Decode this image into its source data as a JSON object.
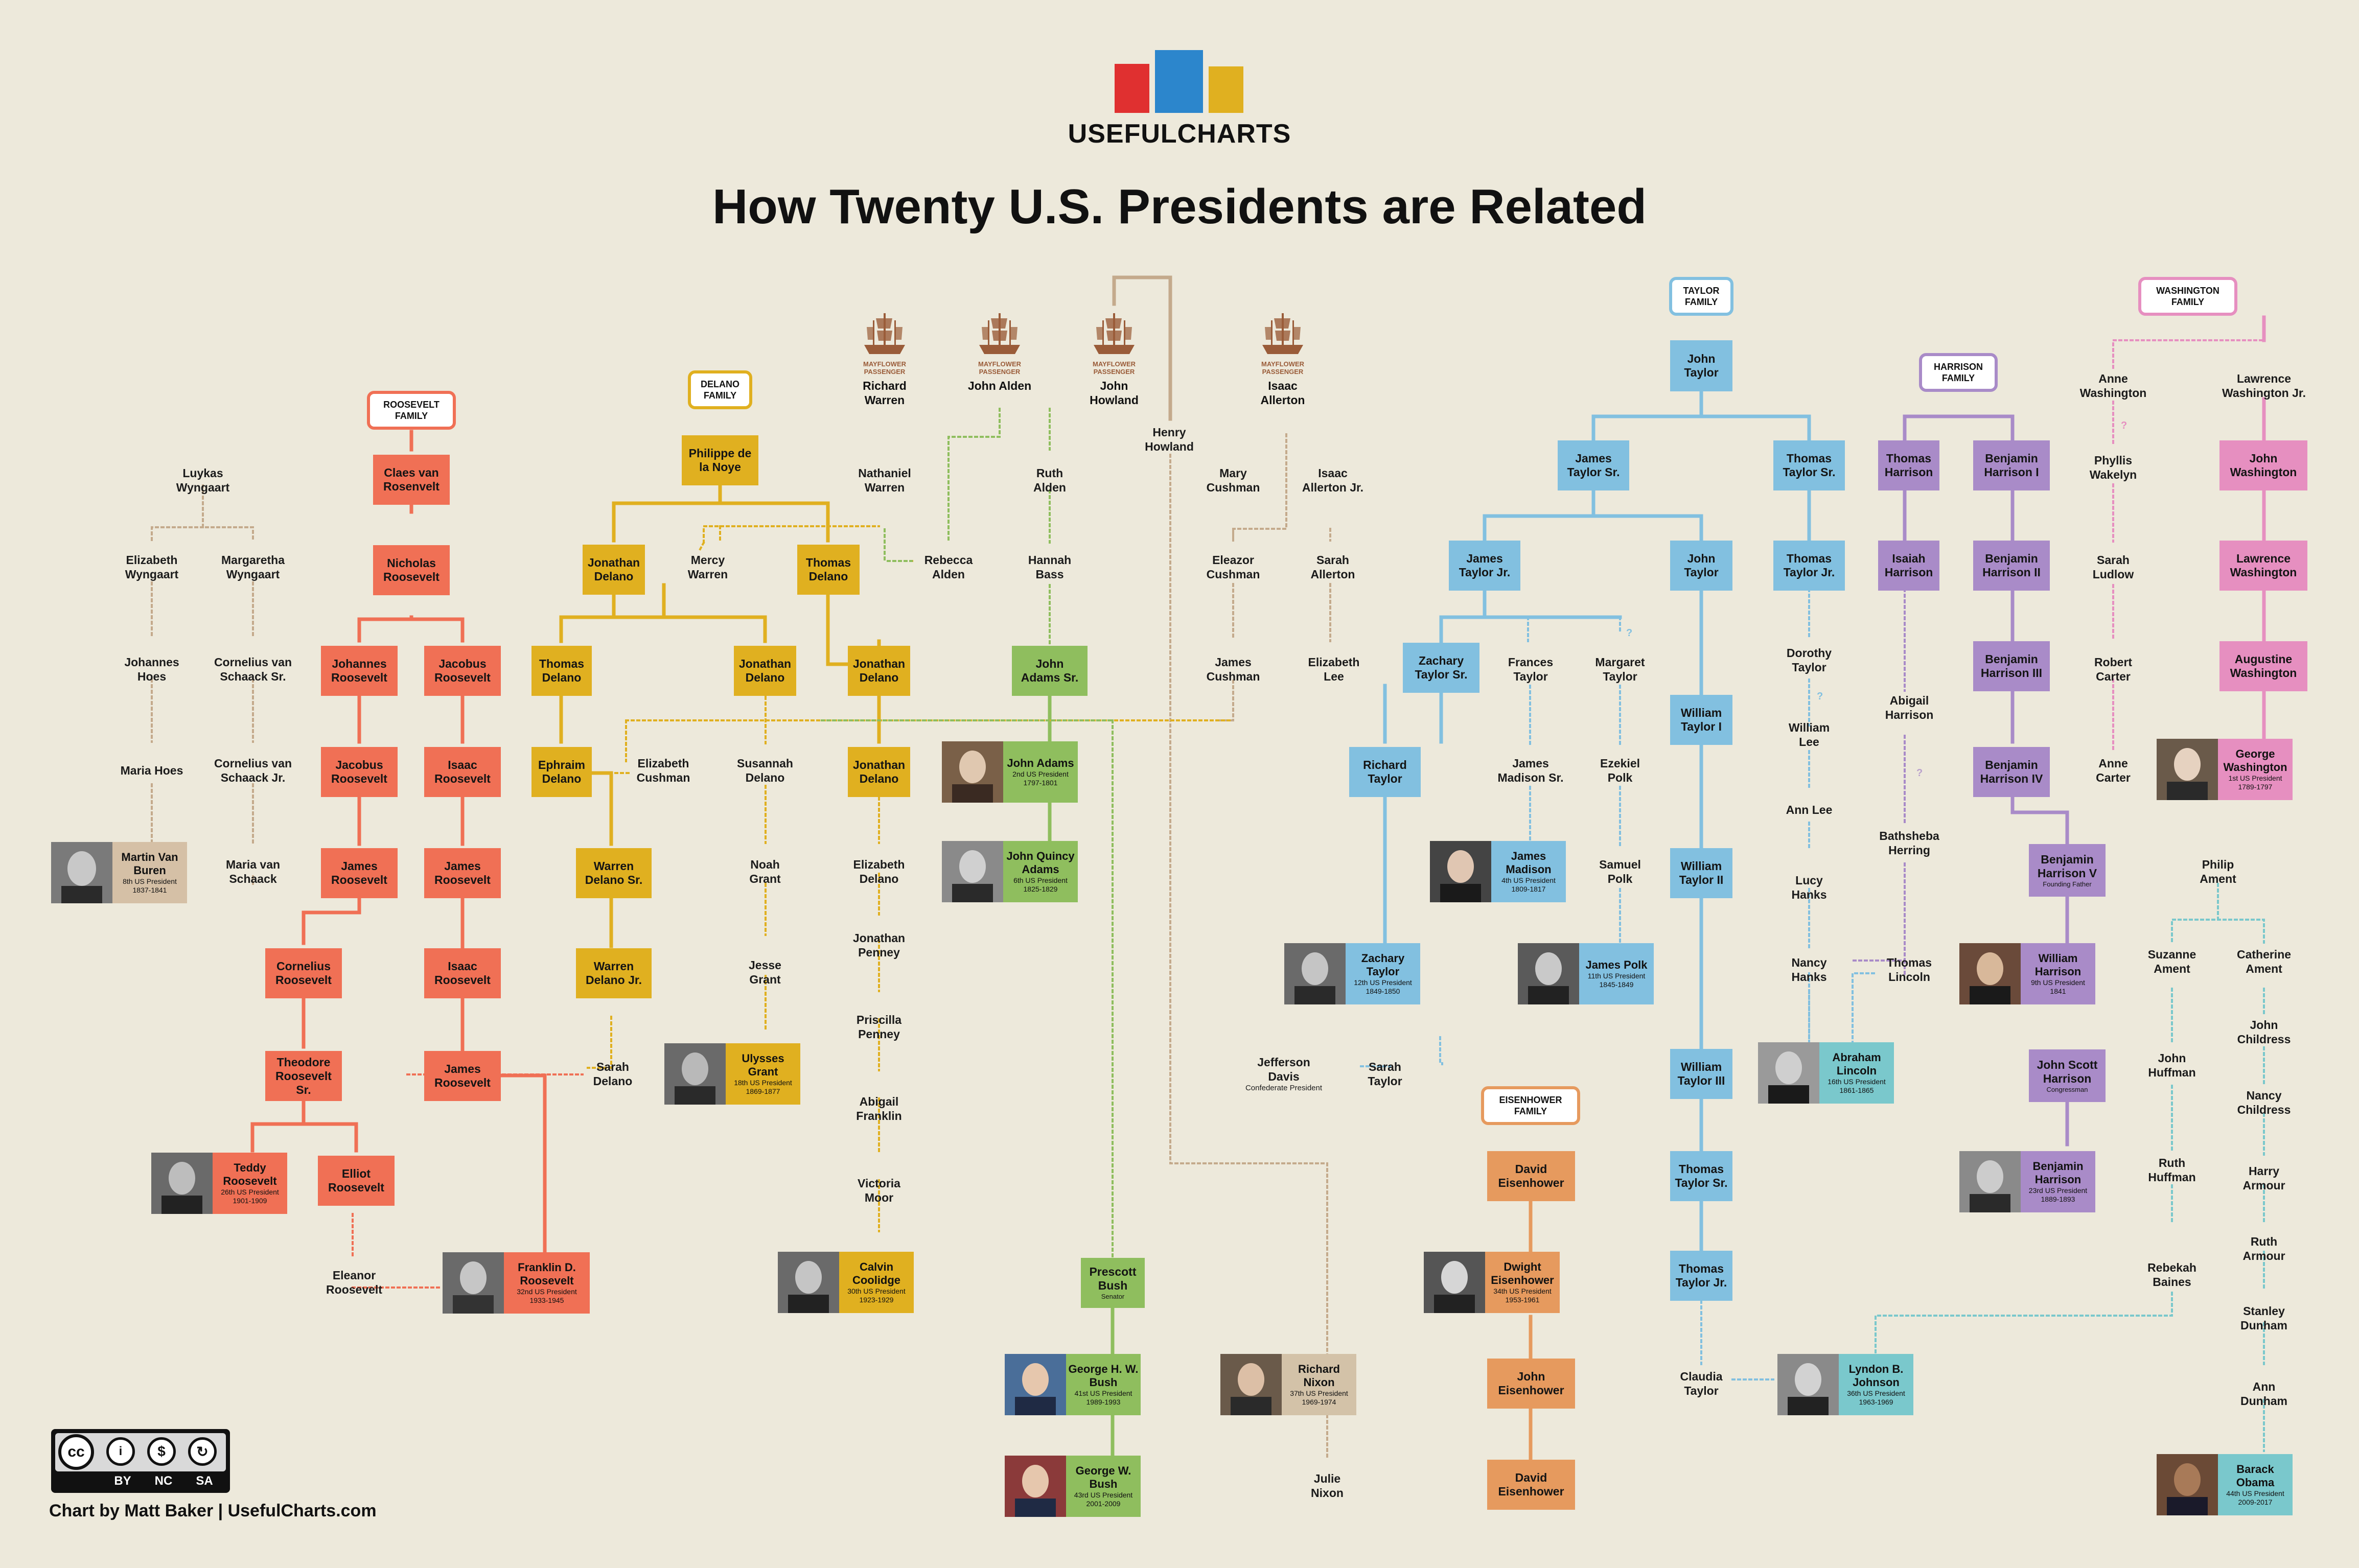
{
  "header": {
    "brand": "USEFULCHARTS",
    "title": "How Twenty U.S. Presidents are Related",
    "logo_colors": [
      "#E03030",
      "#2C86CC",
      "#E0B020"
    ]
  },
  "footer": {
    "credit": "Chart by Matt Baker | UsefulCharts.com",
    "license_labels": [
      "BY",
      "NC",
      "SA"
    ],
    "license_icons": [
      "cc-icon",
      "person-icon",
      "dollar-icon",
      "share-alike-icon"
    ]
  },
  "colors": {
    "roosevelt": "#F07055",
    "delano": "#E0B020",
    "alden": "#8FBE5E",
    "taylor": "#82C0E0",
    "harrison": "#A98BC8",
    "washington": "#E68FC0",
    "eisenhower": "#E69A5E",
    "vanburen": "#D5C0A6",
    "nixon": "#D3C2A8",
    "teal": "#7AC8CC",
    "brown_line": "#C4AA8C",
    "mayflower": "#9a5c39"
  },
  "families": {
    "roosevelt": "ROOSEVELT FAMILY",
    "delano": "DELANO FAMILY",
    "taylor": "TAYLOR FAMILY",
    "harrison": "HARRISON FAMILY",
    "washington": "WASHINGTON FAMILY",
    "eisenhower": "EISENHOWER FAMILY"
  },
  "mayflower": {
    "caption": "MAYFLOWER PASSENGER",
    "passengers": [
      "Richard Warren",
      "John Alden",
      "John Howland",
      "Isaac Allerton"
    ]
  },
  "people": {
    "p1": "Claes van Rosenvelt",
    "p2": "Nicholas Roosevelt",
    "p3": "Johannes Roosevelt",
    "p4": "Jacobus Roosevelt",
    "p5": "Jacobus Roosevelt",
    "p6": "Isaac Roosevelt",
    "p7": "James Roosevelt",
    "p8": "James Roosevelt",
    "p9": "Cornelius Roosevelt",
    "p10": "Isaac Roosevelt",
    "p11": "Theodore Roosevelt Sr.",
    "p12": "James Roosevelt",
    "p13": "Elliot Roosevelt",
    "p14": "Philippe de la Noye",
    "p15": "Jonathan Delano",
    "p16": "Thomas Delano",
    "p17": "Thomas Delano",
    "p18": "Jonathan Delano",
    "p19": "Jonathan Delano",
    "p20": "Ephraim Delano",
    "p21": "Jonathan Delano",
    "p22": "Warren Delano Sr.",
    "p23": "Warren Delano Jr.",
    "p24": "John Adams Sr.",
    "p25": "Prescott Bush",
    "p26": "John Taylor",
    "p27": "James Taylor Sr.",
    "p28": "Thomas Taylor Sr.",
    "p29": "James Taylor Jr.",
    "p30": "John Taylor",
    "p31": "Thomas Taylor Jr.",
    "p32": "Zachary Taylor Sr.",
    "p33": "William Taylor I",
    "p34": "Richard Taylor",
    "p35": "William Taylor II",
    "p36": "William Taylor III",
    "p37": "Thomas Taylor Sr.",
    "p38": "Thomas Taylor Jr.",
    "p39": "Thomas Harrison",
    "p40": "Benjamin Harrison I",
    "p41": "Isaiah Harrison",
    "p42": "Benjamin Harrison II",
    "p43": "Benjamin Harrison III",
    "p44": "Benjamin Harrison IV",
    "p45": "John Scott Harrison",
    "p45s": "Congressman",
    "p46": "Benjamin Harrison V",
    "p46s": "Founding Father",
    "p47": "John Washington",
    "p48": "Lawrence Washington",
    "p49": "Augustine Washington",
    "p50": "David Eisenhower",
    "p51": "John Eisenhower",
    "p52": "David Eisenhower"
  },
  "names": {
    "n1": "Luykas Wyngaart",
    "n2": "Elizabeth Wyngaart",
    "n3": "Margaretha Wyngaart",
    "n4": "Johannes Hoes",
    "n5": "Cornelius van Schaack Sr.",
    "n6": "Maria Hoes",
    "n7": "Cornelius van Schaack Jr.",
    "n8": "Maria van Schaack",
    "n9": "Eleanor Roosevelt",
    "n10": "Mercy Warren",
    "n11": "Elizabeth Cushman",
    "n12": "Susannah Delano",
    "n13": "Noah Grant",
    "n14": "Jesse Grant",
    "n15": "Sarah Delano",
    "n16": "Nathaniel Warren",
    "n17": "Rebecca Alden",
    "n18": "Ruth Alden",
    "n19": "Hannah Bass",
    "n20": "Elizabeth Delano",
    "n21": "Jonathan Penney",
    "n22": "Priscilla Penney",
    "n23": "Abigail Franklin",
    "n24": "Victoria Moor",
    "n25": "Henry Howland",
    "n26": "Mary Cushman",
    "n27": "Isaac Allerton Jr.",
    "n28": "Eleazor Cushman",
    "n29": "Sarah Allerton",
    "n30": "James Cushman",
    "n31": "Elizabeth Lee",
    "n32": "Julie Nixon",
    "n33": "Frances Taylor",
    "n34": "Margaret Taylor",
    "n35": "James Madison Sr.",
    "n36": "Ezekiel Polk",
    "n37": "Samuel Polk",
    "n38": "Jefferson Davis",
    "n38s": "Confederate President",
    "n39": "Sarah Taylor",
    "n40": "Dorothy Taylor",
    "n41": "William Lee",
    "n42": "Ann Lee",
    "n43": "Lucy Hanks",
    "n44": "Nancy Hanks",
    "n45": "Claudia Taylor",
    "n46": "Abigail Harrison",
    "n47": "Bathsheba Herring",
    "n48": "Thomas Lincoln",
    "n49": "Anne Washington",
    "n50": "Lawrence Washington Jr.",
    "n51": "Phyllis Wakelyn",
    "n52": "Sarah Ludlow",
    "n53": "Robert Carter",
    "n54": "Anne Carter",
    "n55": "Philip Ament",
    "n56": "Suzanne Ament",
    "n57": "Catherine Ament",
    "n58": "John Huffman",
    "n59": "John Childress",
    "n60": "Nancy Childress",
    "n61": "Ruth Huffman",
    "n62": "Harry Armour",
    "n63": "Rebekah Baines",
    "n64": "Ruth Armour",
    "n65": "Stanley Dunham",
    "n66": "Ann Dunham"
  },
  "presidents": {
    "vanburen": {
      "name": "Martin Van Buren",
      "sub": "8th US President",
      "years": "1837-1841"
    },
    "teddy": {
      "name": "Teddy Roosevelt",
      "sub": "26th US President",
      "years": "1901-1909"
    },
    "fdr": {
      "name": "Franklin D. Roosevelt",
      "sub": "32nd US President",
      "years": "1933-1945"
    },
    "grant": {
      "name": "Ulysses Grant",
      "sub": "18th US President",
      "years": "1869-1877"
    },
    "coolidge": {
      "name": "Calvin Coolidge",
      "sub": "30th US President",
      "years": "1923-1929"
    },
    "adams": {
      "name": "John Adams",
      "sub": "2nd US President",
      "years": "1797-1801"
    },
    "jqadams": {
      "name": "John Quincy Adams",
      "sub": "6th US President",
      "years": "1825-1829"
    },
    "ghwbush": {
      "name": "George H. W. Bush",
      "sub": "41st US President",
      "years": "1989-1993"
    },
    "gwbush": {
      "name": "George W. Bush",
      "sub": "43rd US President",
      "years": "2001-2009"
    },
    "nixon": {
      "name": "Richard Nixon",
      "sub": "37th US President",
      "years": "1969-1974"
    },
    "madison": {
      "name": "James Madison",
      "sub": "4th US President",
      "years": "1809-1817"
    },
    "polk": {
      "name": "James Polk",
      "sub": "11th US President",
      "years": "1845-1849"
    },
    "ztaylor": {
      "name": "Zachary Taylor",
      "sub": "12th US President",
      "years": "1849-1850"
    },
    "eisenhower": {
      "name": "Dwight Eisenhower",
      "sub": "34th US President",
      "years": "1953-1961"
    },
    "lincoln": {
      "name": "Abraham Lincoln",
      "sub": "16th US President",
      "years": "1861-1865"
    },
    "lbj": {
      "name": "Lyndon B. Johnson",
      "sub": "36th US President",
      "years": "1963-1969"
    },
    "wharrison": {
      "name": "William Harrison",
      "sub": "9th US President",
      "years": "1841"
    },
    "bharrison": {
      "name": "Benjamin Harrison",
      "sub": "23rd US President",
      "years": "1889-1893"
    },
    "washington": {
      "name": "George Washington",
      "sub": "1st US President",
      "years": "1789-1797"
    },
    "obama": {
      "name": "Barack Obama",
      "sub": "44th US President",
      "years": "2009-2017"
    }
  }
}
